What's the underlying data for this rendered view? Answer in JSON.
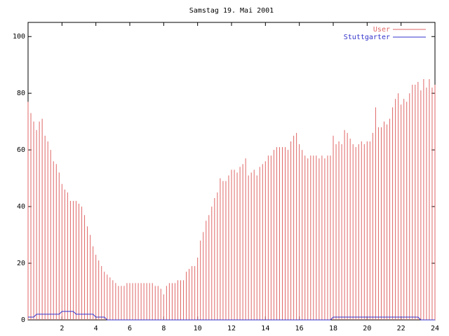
{
  "chart_data": {
    "type": "impulses",
    "title": "Samstag 19. Mai 2001",
    "x": [
      0,
      0.167,
      0.333,
      0.5,
      0.667,
      0.833,
      1,
      1.167,
      1.333,
      1.5,
      1.667,
      1.833,
      2,
      2.167,
      2.333,
      2.5,
      2.667,
      2.833,
      3,
      3.167,
      3.333,
      3.5,
      3.667,
      3.833,
      4,
      4.167,
      4.333,
      4.5,
      4.667,
      4.833,
      5,
      5.167,
      5.333,
      5.5,
      5.667,
      5.833,
      6,
      6.167,
      6.333,
      6.5,
      6.667,
      6.833,
      7,
      7.167,
      7.333,
      7.5,
      7.667,
      7.833,
      8,
      8.167,
      8.333,
      8.5,
      8.667,
      8.833,
      9,
      9.167,
      9.333,
      9.5,
      9.667,
      9.833,
      10,
      10.167,
      10.333,
      10.5,
      10.667,
      10.833,
      11,
      11.167,
      11.333,
      11.5,
      11.667,
      11.833,
      12,
      12.167,
      12.333,
      12.5,
      12.667,
      12.833,
      13,
      13.167,
      13.333,
      13.5,
      13.667,
      13.833,
      14,
      14.167,
      14.333,
      14.5,
      14.667,
      14.833,
      15,
      15.167,
      15.333,
      15.5,
      15.667,
      15.833,
      16,
      16.167,
      16.333,
      16.5,
      16.667,
      16.833,
      17,
      17.167,
      17.333,
      17.5,
      17.667,
      17.833,
      18,
      18.167,
      18.333,
      18.5,
      18.667,
      18.833,
      19,
      19.167,
      19.333,
      19.5,
      19.667,
      19.833,
      20,
      20.167,
      20.333,
      20.5,
      20.667,
      20.833,
      21,
      21.167,
      21.333,
      21.5,
      21.667,
      21.833,
      22,
      22.167,
      22.333,
      22.5,
      22.667,
      22.833,
      23,
      23.167,
      23.333,
      23.5,
      23.667,
      23.833,
      24
    ],
    "series": [
      {
        "name": "User",
        "color": "#e06666",
        "style": "impulses",
        "values": [
          77,
          73,
          70,
          67,
          70,
          71,
          65,
          63,
          60,
          56,
          55,
          52,
          48,
          46,
          45,
          42,
          42,
          42,
          41,
          40,
          37,
          33,
          30,
          26,
          23,
          21,
          19,
          17,
          16,
          15,
          14,
          13,
          12,
          12,
          12,
          13,
          13,
          13,
          13,
          13,
          13,
          13,
          13,
          13,
          13,
          12,
          12,
          11,
          9,
          12,
          13,
          13,
          13,
          14,
          14,
          14,
          17,
          18,
          19,
          19,
          22,
          28,
          31,
          35,
          37,
          40,
          43,
          45,
          50,
          49,
          49,
          51,
          53,
          53,
          52,
          54,
          55,
          57,
          51,
          52,
          53,
          51,
          54,
          55,
          56,
          58,
          58,
          60,
          61,
          61,
          61,
          61,
          60,
          63,
          65,
          66,
          62,
          60,
          58,
          57,
          58,
          58,
          58,
          57,
          58,
          57,
          58,
          58,
          65,
          62,
          63,
          62,
          67,
          66,
          64,
          62,
          61,
          62,
          63,
          62,
          63,
          63,
          66,
          75,
          68,
          68,
          70,
          69,
          71,
          75,
          78,
          80,
          76,
          78,
          77,
          80,
          83,
          83,
          84,
          81,
          85,
          82,
          85,
          82,
          83
        ]
      },
      {
        "name": "Stuttgarter",
        "color": "#3333cc",
        "style": "line",
        "values": [
          1,
          1,
          1,
          2,
          2,
          2,
          2,
          2,
          2,
          2,
          2,
          2,
          3,
          3,
          3,
          3,
          3,
          2,
          2,
          2,
          2,
          2,
          2,
          2,
          1,
          1,
          1,
          1,
          0,
          0,
          0,
          0,
          0,
          0,
          0,
          0,
          0,
          0,
          0,
          0,
          0,
          0,
          0,
          0,
          0,
          0,
          0,
          0,
          0,
          0,
          0,
          0,
          0,
          0,
          0,
          0,
          0,
          0,
          0,
          0,
          0,
          0,
          0,
          0,
          0,
          0,
          0,
          0,
          0,
          0,
          0,
          0,
          0,
          0,
          0,
          0,
          0,
          0,
          0,
          0,
          0,
          0,
          0,
          0,
          0,
          0,
          0,
          0,
          0,
          0,
          0,
          0,
          0,
          0,
          0,
          0,
          0,
          0,
          0,
          0,
          0,
          0,
          0,
          0,
          0,
          0,
          0,
          0,
          1,
          1,
          1,
          1,
          1,
          1,
          1,
          1,
          1,
          1,
          1,
          1,
          1,
          1,
          1,
          1,
          1,
          1,
          1,
          1,
          1,
          1,
          1,
          1,
          1,
          1,
          1,
          1,
          1,
          1,
          1,
          0,
          0,
          0,
          0,
          0,
          0
        ]
      }
    ],
    "xlim": [
      0,
      24
    ],
    "xticks": [
      2,
      4,
      6,
      8,
      10,
      12,
      14,
      16,
      18,
      20,
      22,
      24
    ],
    "ylim": [
      0,
      105
    ],
    "yticks": [
      0,
      20,
      40,
      60,
      80,
      100
    ],
    "legend": "top-right"
  }
}
